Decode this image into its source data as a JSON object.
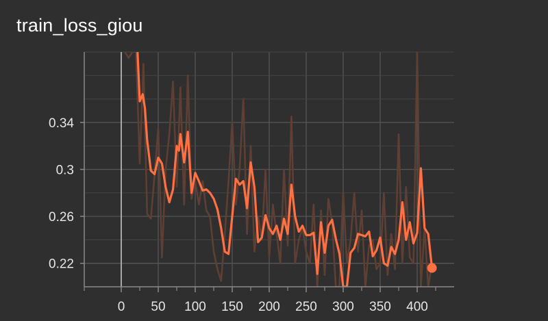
{
  "chart_data": {
    "type": "line",
    "title": "train_loss_giou",
    "xlabel": "",
    "ylabel": "",
    "xlim": [
      -50,
      450
    ],
    "ylim": [
      0.2,
      0.4
    ],
    "x_ticks": [
      0,
      50,
      100,
      150,
      200,
      250,
      300,
      350,
      400
    ],
    "x_minor_ticks": [
      -50,
      25,
      75,
      125,
      175,
      225,
      275,
      325,
      375,
      425
    ],
    "y_ticks": [
      0.22,
      0.26,
      0.3,
      0.34
    ],
    "y_tick_labels": [
      "0.22",
      "0.26",
      "0.3",
      "0.34"
    ],
    "grid": true,
    "series": [
      {
        "role": "raw",
        "color": "#5e3f34",
        "x": [
          5,
          10,
          15,
          20,
          25,
          30,
          35,
          40,
          45,
          50,
          55,
          60,
          65,
          70,
          75,
          80,
          85,
          90,
          95,
          100,
          105,
          110,
          115,
          120,
          125,
          130,
          135,
          140,
          145,
          150,
          155,
          160,
          165,
          170,
          175,
          180,
          185,
          190,
          195,
          200,
          205,
          210,
          215,
          220,
          225,
          230,
          235,
          240,
          245,
          250,
          255,
          260,
          265,
          270,
          275,
          280,
          285,
          290,
          295,
          300,
          305,
          310,
          315,
          320,
          325,
          330,
          335,
          340,
          345,
          350,
          355,
          360,
          365,
          370,
          375,
          380,
          385,
          390,
          395,
          400,
          405,
          410,
          415,
          420
        ],
        "y": [
          0.4,
          0.395,
          0.4,
          0.4,
          0.305,
          0.39,
          0.262,
          0.258,
          0.295,
          0.335,
          0.225,
          0.3,
          0.33,
          0.375,
          0.285,
          0.37,
          0.27,
          0.38,
          0.275,
          0.29,
          0.27,
          0.29,
          0.265,
          0.26,
          0.23,
          0.215,
          0.205,
          0.245,
          0.29,
          0.34,
          0.27,
          0.3,
          0.36,
          0.245,
          0.32,
          0.23,
          0.26,
          0.24,
          0.3,
          0.225,
          0.27,
          0.245,
          0.22,
          0.3,
          0.235,
          0.345,
          0.22,
          0.24,
          0.25,
          0.23,
          0.22,
          0.27,
          0.2,
          0.265,
          0.21,
          0.275,
          0.255,
          0.2,
          0.2,
          0.28,
          0.22,
          0.24,
          0.28,
          0.23,
          0.265,
          0.2,
          0.235,
          0.24,
          0.215,
          0.22,
          0.28,
          0.21,
          0.245,
          0.215,
          0.33,
          0.22,
          0.285,
          0.225,
          0.22,
          0.4,
          0.2,
          0.25,
          0.2,
          0.22
        ]
      },
      {
        "role": "smoothed",
        "color": "#ff7043",
        "x": [
          22,
          25,
          29,
          32,
          35,
          40,
          45,
          50,
          55,
          60,
          65,
          70,
          75,
          78,
          80,
          85,
          90,
          95,
          100,
          105,
          110,
          115,
          120,
          125,
          130,
          135,
          140,
          145,
          150,
          155,
          160,
          165,
          170,
          175,
          180,
          185,
          190,
          195,
          200,
          205,
          210,
          215,
          220,
          225,
          230,
          235,
          240,
          245,
          250,
          255,
          260,
          265,
          270,
          275,
          280,
          285,
          290,
          295,
          300,
          305,
          310,
          315,
          320,
          325,
          330,
          335,
          340,
          345,
          350,
          355,
          360,
          365,
          370,
          375,
          380,
          385,
          390,
          395,
          400,
          405,
          410,
          415,
          420
        ],
        "y": [
          0.4,
          0.358,
          0.364,
          0.352,
          0.325,
          0.299,
          0.296,
          0.31,
          0.305,
          0.285,
          0.272,
          0.283,
          0.32,
          0.316,
          0.33,
          0.306,
          0.332,
          0.28,
          0.297,
          0.29,
          0.282,
          0.283,
          0.28,
          0.275,
          0.266,
          0.25,
          0.23,
          0.228,
          0.26,
          0.292,
          0.287,
          0.29,
          0.267,
          0.306,
          0.285,
          0.238,
          0.242,
          0.261,
          0.25,
          0.245,
          0.252,
          0.24,
          0.258,
          0.245,
          0.287,
          0.26,
          0.247,
          0.252,
          0.244,
          0.244,
          0.246,
          0.211,
          0.255,
          0.229,
          0.252,
          0.257,
          0.241,
          0.228,
          0.2,
          0.2,
          0.229,
          0.233,
          0.245,
          0.244,
          0.243,
          0.247,
          0.226,
          0.231,
          0.242,
          0.22,
          0.218,
          0.234,
          0.228,
          0.24,
          0.272,
          0.24,
          0.255,
          0.237,
          0.246,
          0.301,
          0.25,
          0.245,
          0.216
        ]
      }
    ]
  }
}
